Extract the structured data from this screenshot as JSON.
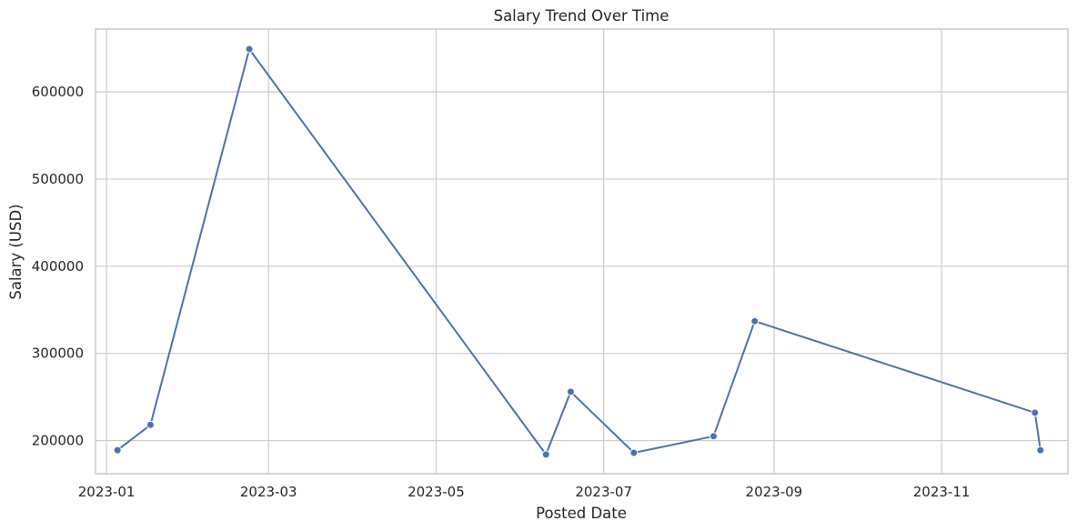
{
  "chart_data": {
    "type": "line",
    "title": "Salary Trend Over Time",
    "xlabel": "Posted Date",
    "ylabel": "Salary (USD)",
    "x_tick_labels": [
      "2023-01",
      "2023-03",
      "2023-05",
      "2023-07",
      "2023-09",
      "2023-11"
    ],
    "y_tick_labels": [
      "200000",
      "300000",
      "400000",
      "500000",
      "600000"
    ],
    "xlim": [
      "2022-12-28",
      "2023-12-17"
    ],
    "ylim": [
      162000,
      672000
    ],
    "grid": true,
    "color": "#4c72b0",
    "x": [
      "2023-01-05",
      "2023-01-17",
      "2023-02-22",
      "2023-06-10",
      "2023-06-19",
      "2023-07-12",
      "2023-08-10",
      "2023-08-25",
      "2023-12-05",
      "2023-12-07"
    ],
    "values": [
      189000,
      218000,
      649000,
      184000,
      256000,
      186000,
      205000,
      337000,
      232000,
      189000
    ]
  }
}
